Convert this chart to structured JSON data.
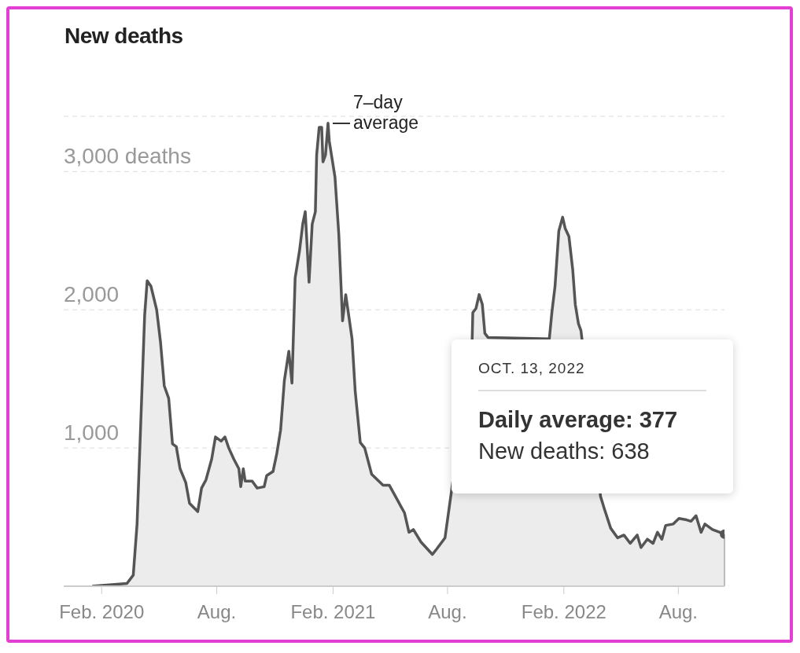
{
  "chart_data": {
    "type": "area",
    "title": "New deaths",
    "x": [
      "2020-01-17",
      "2020-03-12",
      "2020-03-22",
      "2020-03-28",
      "2020-04-03",
      "2020-04-09",
      "2020-04-13",
      "2020-04-19",
      "2020-04-28",
      "2020-05-04",
      "2020-05-10",
      "2020-05-17",
      "2020-05-23",
      "2020-05-29",
      "2020-06-04",
      "2020-06-13",
      "2020-06-19",
      "2020-07-02",
      "2020-07-08",
      "2020-07-15",
      "2020-07-24",
      "2020-07-30",
      "2020-08-08",
      "2020-08-14",
      "2020-08-20",
      "2020-08-28",
      "2020-09-05",
      "2020-09-08",
      "2020-09-12",
      "2020-09-15",
      "2020-09-26",
      "2020-10-04",
      "2020-10-15",
      "2020-10-19",
      "2020-10-29",
      "2020-11-04",
      "2020-11-10",
      "2020-11-16",
      "2020-11-23",
      "2020-11-28",
      "2020-12-03",
      "2020-12-10",
      "2020-12-15",
      "2020-12-19",
      "2020-12-25",
      "2020-12-30",
      "2021-01-04",
      "2021-01-06",
      "2021-01-10",
      "2021-01-14",
      "2021-01-16",
      "2021-01-20",
      "2021-01-24",
      "2021-01-26",
      "2021-02-04",
      "2021-02-10",
      "2021-02-16",
      "2021-02-21",
      "2021-02-26",
      "2021-03-03",
      "2021-03-08",
      "2021-03-16",
      "2021-03-23",
      "2021-04-03",
      "2021-04-21",
      "2021-05-01",
      "2021-05-13",
      "2021-05-25",
      "2021-06-01",
      "2021-06-08",
      "2021-06-20",
      "2021-07-08",
      "2021-07-15",
      "2021-07-28",
      "2021-08-07",
      "2021-09-09",
      "2021-09-10",
      "2021-09-15",
      "2021-09-20",
      "2021-09-25",
      "2021-09-29",
      "2021-10-04",
      "2022-01-09",
      "2022-01-13",
      "2022-01-18",
      "2022-01-24",
      "2022-01-30",
      "2022-02-03",
      "2022-02-09",
      "2022-02-15",
      "2022-02-19",
      "2022-02-24",
      "2022-02-28",
      "2022-03-31",
      "2022-04-06",
      "2022-04-16",
      "2022-04-27",
      "2022-05-07",
      "2022-05-17",
      "2022-05-28",
      "2022-06-03",
      "2022-06-13",
      "2022-06-22",
      "2022-06-29",
      "2022-07-06",
      "2022-07-12",
      "2022-07-24",
      "2022-08-02",
      "2022-08-14",
      "2022-08-21",
      "2022-08-29",
      "2022-09-06",
      "2022-09-12",
      "2022-09-24",
      "2022-10-13"
    ],
    "series": [
      {
        "color": "#555555",
        "values": [
          0,
          20,
          80,
          450,
          1200,
          1960,
          2210,
          2170,
          2000,
          1770,
          1450,
          1360,
          1030,
          1010,
          850,
          750,
          600,
          540,
          710,
          770,
          920,
          1080,
          1050,
          1080,
          1000,
          920,
          850,
          720,
          850,
          760,
          760,
          710,
          720,
          800,
          830,
          960,
          1130,
          1490,
          1700,
          1470,
          2230,
          2430,
          2620,
          2710,
          2200,
          2620,
          2710,
          3120,
          3320,
          3320,
          3070,
          3120,
          3350,
          3220,
          2960,
          2550,
          1920,
          2110,
          1950,
          1790,
          1410,
          1040,
          1000,
          810,
          730,
          730,
          630,
          530,
          390,
          410,
          320,
          230,
          270,
          350,
          680,
          1790,
          1980,
          2010,
          2110,
          2040,
          1830,
          1800,
          1790,
          1980,
          2170,
          2570,
          2670,
          2590,
          2530,
          2290,
          2040,
          1900,
          1850,
          650,
          560,
          420,
          350,
          370,
          310,
          370,
          280,
          340,
          310,
          390,
          340,
          440,
          450,
          490,
          480,
          470,
          510,
          390,
          450,
          410,
          377
        ]
      }
    ],
    "xlim": [
      "2019-12-03",
      "2022-10-13"
    ],
    "xticks": [
      {
        "value": "2020-02-01",
        "label": "Feb. 2020"
      },
      {
        "value": "2020-08-01",
        "label": "Aug."
      },
      {
        "value": "2021-02-01",
        "label": "Feb. 2021"
      },
      {
        "value": "2021-08-01",
        "label": "Aug."
      },
      {
        "value": "2022-02-01",
        "label": "Feb. 2022"
      },
      {
        "value": "2022-08-01",
        "label": "Aug."
      }
    ],
    "ylim": [
      0,
      3400
    ],
    "yticks": [
      {
        "value": 1000,
        "label": "1,000"
      },
      {
        "value": 2000,
        "label": "2,000"
      },
      {
        "value": 3000,
        "label": "3,000 deaths"
      }
    ],
    "grid": "y",
    "legend": false,
    "ref_lines": [
      {
        "axis": "x",
        "value": "2022-10-13",
        "color": "#bbbbbb"
      }
    ],
    "annotations": [
      {
        "text": "7–day average",
        "x": "2021-01-24",
        "y": 3350
      },
      "OCT. 13, 2022",
      "Daily average: 377",
      "New deaths: 638"
    ]
  }
}
